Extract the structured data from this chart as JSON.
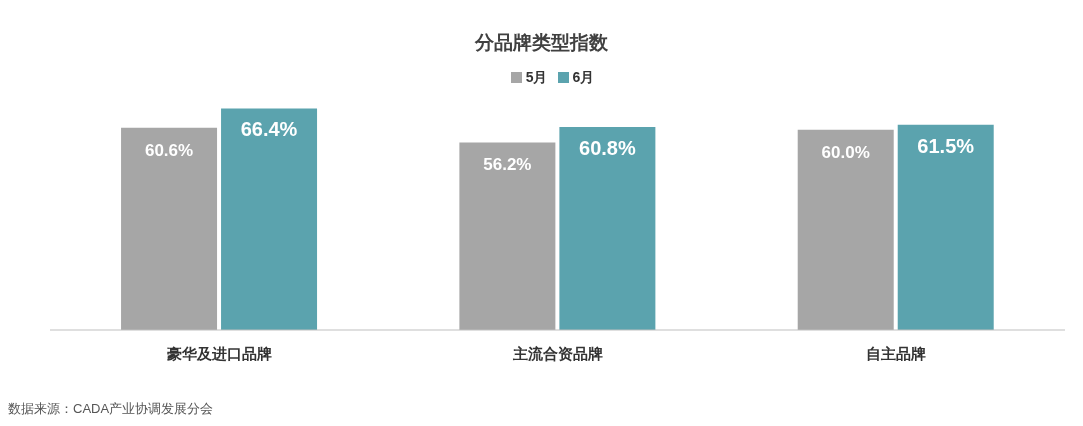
{
  "chart_data": {
    "type": "bar",
    "title": "分品牌类型指数",
    "categories": [
      "豪华及进口品牌",
      "主流合资品牌",
      "自主品牌"
    ],
    "series": [
      {
        "name": "5月",
        "color": "#a6a6a6",
        "values": [
          60.6,
          56.2,
          60.0
        ],
        "value_labels": [
          "60.6%",
          "56.2%",
          "60.0%"
        ]
      },
      {
        "name": "6月",
        "color": "#5ba3ae",
        "values": [
          66.4,
          60.8,
          61.5
        ],
        "value_labels": [
          "66.4%",
          "60.8%",
          "61.5%"
        ]
      }
    ],
    "legend": "top",
    "grid": false,
    "annotations": [
      "数据来源：CADA产业协调发展分会"
    ]
  }
}
